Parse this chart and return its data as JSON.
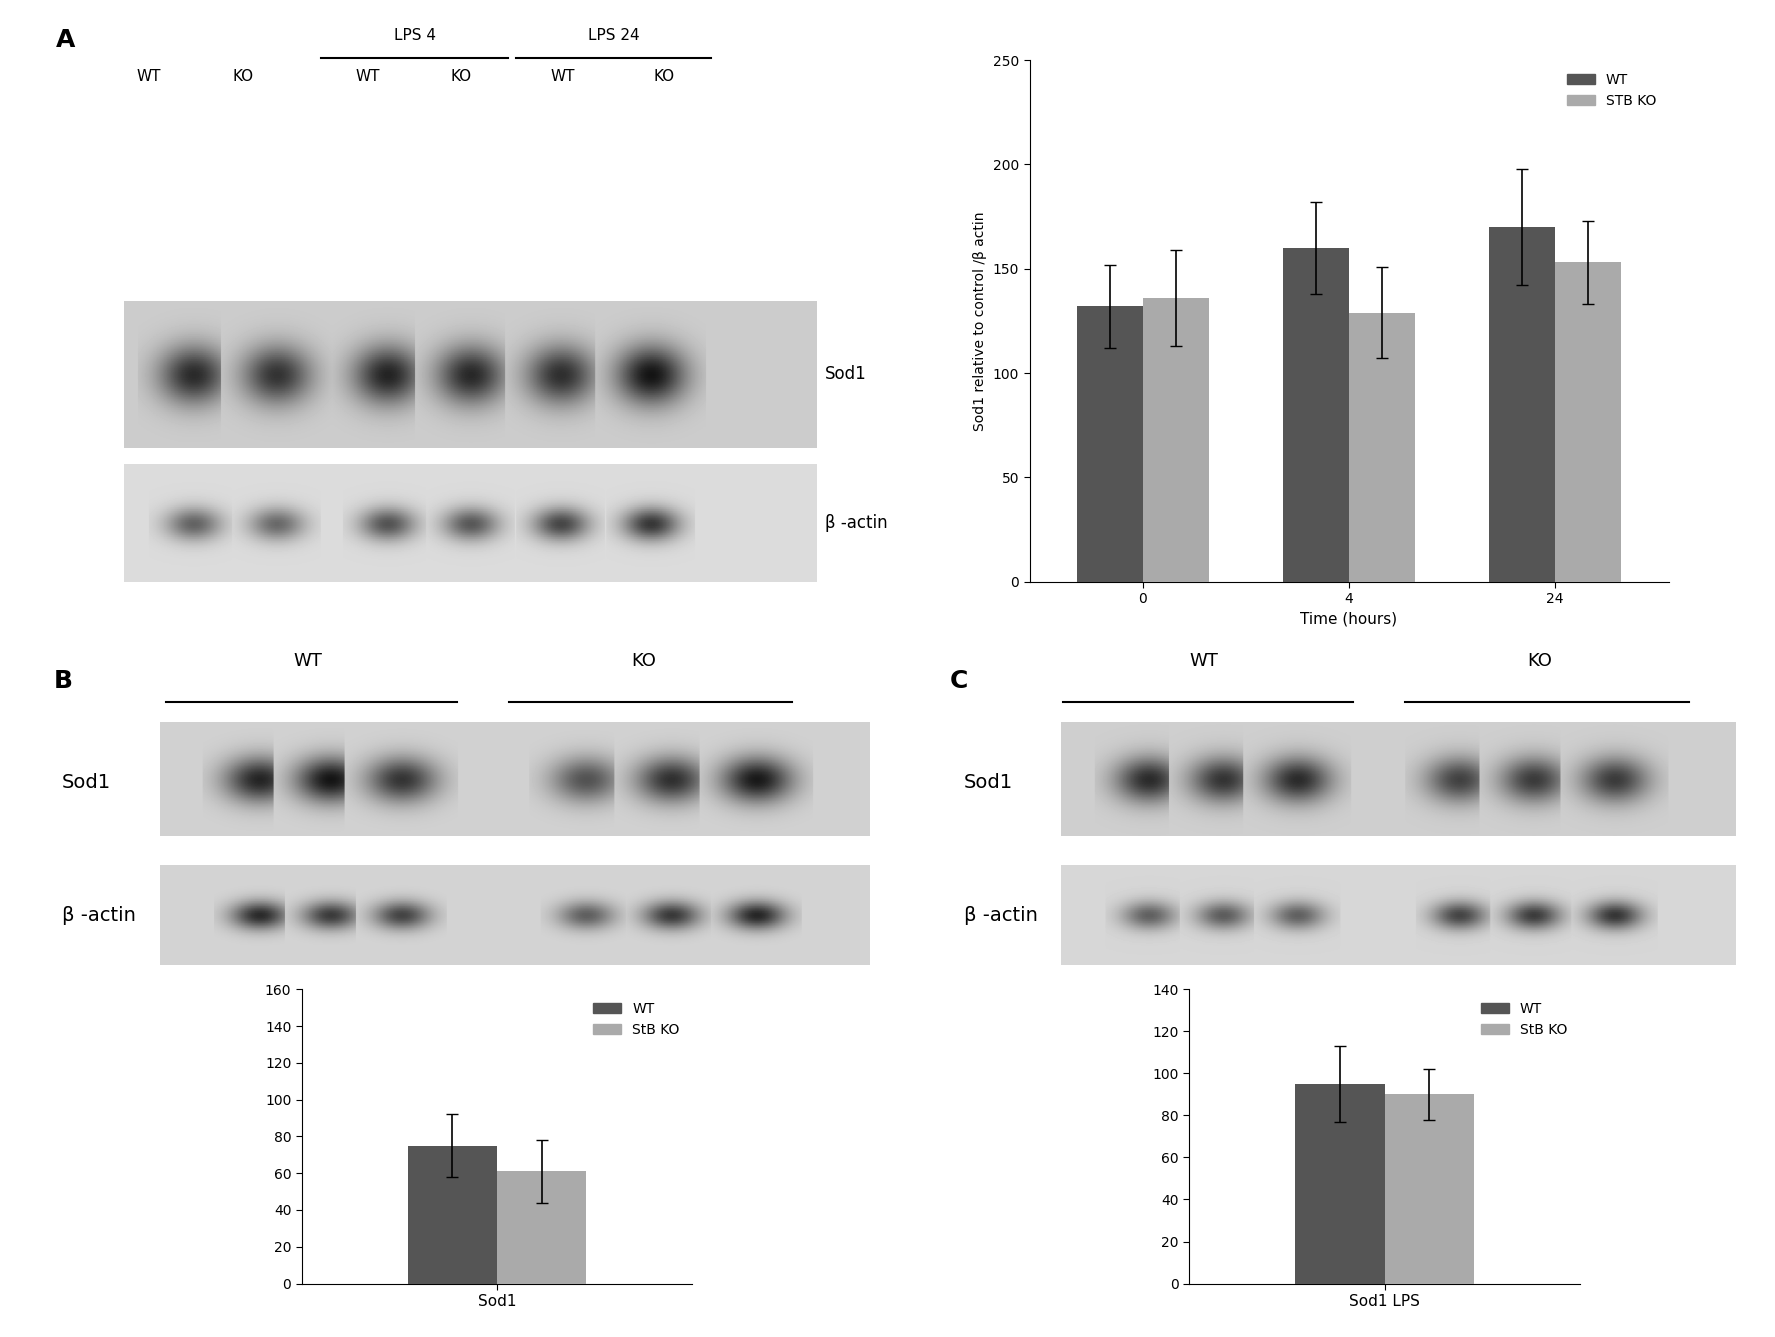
{
  "panel_A_label": "A",
  "panel_B_label": "B",
  "panel_C_label": "C",
  "chart_A": {
    "time_points": [
      "0",
      "4",
      "24"
    ],
    "xlabel": "Time (hours)",
    "ylabel": "Sod1 relative to control /β actin",
    "ylim": [
      0,
      250
    ],
    "yticks": [
      0,
      50,
      100,
      150,
      200,
      250
    ],
    "wt_values": [
      132,
      160,
      170
    ],
    "ko_values": [
      136,
      129,
      153
    ],
    "wt_err": [
      20,
      22,
      28
    ],
    "ko_err": [
      23,
      22,
      20
    ],
    "wt_color": "#555555",
    "ko_color": "#aaaaaa",
    "legend_labels": [
      "WT",
      "STB KO"
    ]
  },
  "chart_B": {
    "categories": [
      "Sod1"
    ],
    "xlabel": "Sod1",
    "ylim": [
      0,
      160
    ],
    "yticks": [
      0,
      20,
      40,
      60,
      80,
      100,
      120,
      140,
      160
    ],
    "wt_values": [
      75
    ],
    "ko_values": [
      61
    ],
    "wt_err": [
      17
    ],
    "ko_err": [
      17
    ],
    "wt_color": "#555555",
    "ko_color": "#aaaaaa",
    "legend_labels": [
      "WT",
      "StB KO"
    ]
  },
  "chart_C": {
    "categories": [
      "Sod1 LPS"
    ],
    "xlabel": "Sod1 LPS",
    "ylim": [
      0,
      140
    ],
    "yticks": [
      0,
      20,
      40,
      60,
      80,
      100,
      120,
      140
    ],
    "wt_values": [
      95
    ],
    "ko_values": [
      90
    ],
    "wt_err": [
      18
    ],
    "ko_err": [
      12
    ],
    "wt_color": "#555555",
    "ko_color": "#aaaaaa",
    "legend_labels": [
      "WT",
      "StB KO"
    ]
  },
  "bg_color": "#ffffff",
  "band_dark": "#404040"
}
